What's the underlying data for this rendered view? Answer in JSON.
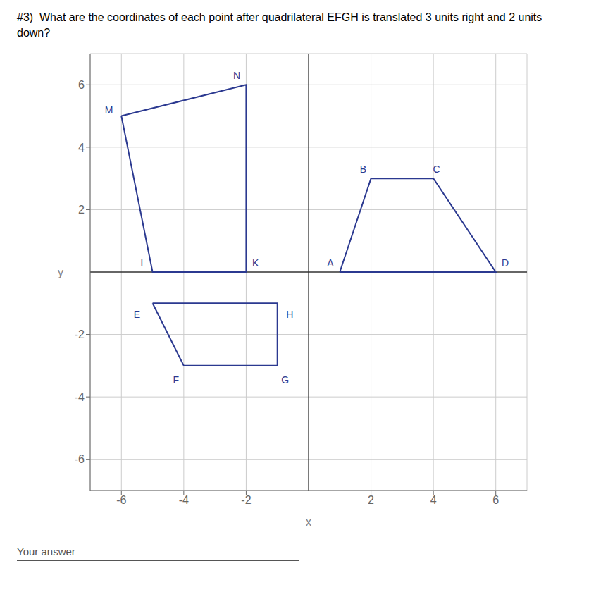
{
  "chart_data": {
    "type": "line",
    "title": "#3)  What are the coordinates of each point after quadrilateral EFGH is translated 3 units right and 2 units down?",
    "xlabel": "x",
    "ylabel": "y",
    "xlim": [
      -7,
      7
    ],
    "ylim": [
      -7,
      7
    ],
    "xticks": [
      -6,
      -4,
      -2,
      2,
      4,
      6
    ],
    "yticks": [
      -6,
      -4,
      -2,
      2,
      4,
      6
    ],
    "grid": true,
    "color": "#2b3990",
    "series": [
      {
        "x": [
          -6,
          -2,
          -2,
          -5,
          -6
        ],
        "values": [
          5,
          6,
          0,
          0,
          5
        ]
      },
      {
        "x": [
          -5,
          -1,
          -1,
          -4,
          -5
        ],
        "values": [
          -1,
          -1,
          -3,
          -3,
          -1
        ]
      },
      {
        "x": [
          1,
          2,
          4,
          6,
          1
        ],
        "values": [
          0,
          3,
          3,
          0,
          0
        ]
      }
    ],
    "annotations": [
      {
        "text": "M",
        "x": -6.4,
        "y": 5.2
      },
      {
        "text": "N",
        "x": -2.3,
        "y": 6.3
      },
      {
        "text": "K",
        "x": -1.7,
        "y": 0.3
      },
      {
        "text": "L",
        "x": -5.3,
        "y": 0.3
      },
      {
        "text": "E",
        "x": -5.5,
        "y": -1.35
      },
      {
        "text": "H",
        "x": -0.6,
        "y": -1.35
      },
      {
        "text": "G",
        "x": -0.75,
        "y": -3.45
      },
      {
        "text": "F",
        "x": -4.25,
        "y": -3.45
      },
      {
        "text": "A",
        "x": 0.7,
        "y": 0.3
      },
      {
        "text": "B",
        "x": 1.75,
        "y": 3.3
      },
      {
        "text": "C",
        "x": 4.1,
        "y": 3.3
      },
      {
        "text": "D",
        "x": 6.3,
        "y": 0.3
      },
      {
        "text": "Your answer"
      }
    ]
  }
}
